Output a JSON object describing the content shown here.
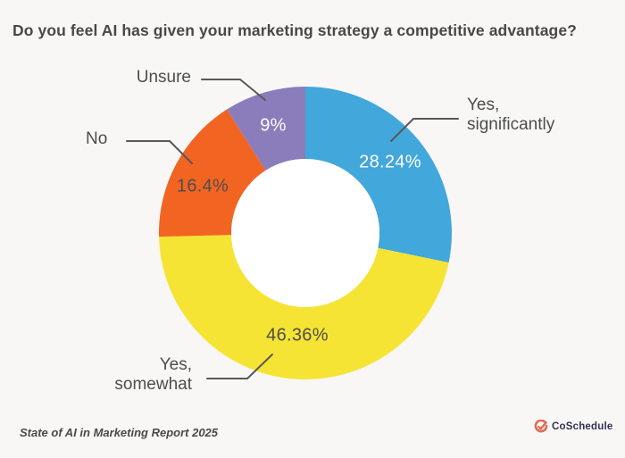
{
  "title": "Do you feel AI has given your marketing strategy a competitive advantage?",
  "chart_data": {
    "type": "pie",
    "subtype": "donut",
    "title": "Do you feel AI has given your marketing strategy a competitive advantage?",
    "units": "percent",
    "direction": "clockwise",
    "start_angle_deg": 0,
    "inner_radius_ratio": 0.51,
    "legend_position": "callout-labels",
    "segments": [
      {
        "label": "Yes, significantly",
        "label_lines": [
          "Yes,",
          "significantly"
        ],
        "value": 28.24,
        "display": "28.24%",
        "color": "#42a7db",
        "value_text_color": "#ffffff"
      },
      {
        "label": "Yes, somewhat",
        "label_lines": [
          "Yes,",
          "somewhat"
        ],
        "value": 46.36,
        "display": "46.36%",
        "color": "#f6e434",
        "value_text_color": "#4d4d4d"
      },
      {
        "label": "No",
        "label_lines": [
          "No"
        ],
        "value": 16.4,
        "display": "16.4%",
        "color": "#f26422",
        "value_text_color": "#4d4d4d"
      },
      {
        "label": "Unsure",
        "label_lines": [
          "Unsure"
        ],
        "value": 9,
        "display": "9%",
        "color": "#8b7cbc",
        "value_text_color": "#ffffff"
      }
    ]
  },
  "footer": {
    "source": "State of AI in Marketing Report 2025",
    "brand": "CoSchedule"
  },
  "colors": {
    "background": "#f8f7f6",
    "title_text": "#484848",
    "label_text": "#4d4d4d",
    "leader_line": "#58585a",
    "donut_hole": "#ffffff",
    "logo_mark": "#df6c55",
    "logo_text": "#32324e"
  }
}
